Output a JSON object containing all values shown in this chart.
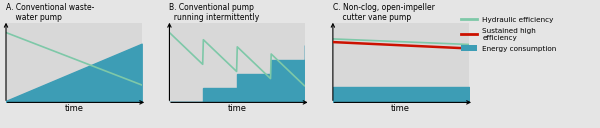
{
  "background_color": "#e5e5e5",
  "plot_bg_color": "#d8d8d8",
  "energy_color": "#3d9db5",
  "hydraulic_color": "#7ec8a8",
  "sustained_color": "#cc1100",
  "title_A": "A. Conventional waste-\n    water pump",
  "title_B": "B. Conventional pump\n  running intermittently",
  "title_C": "C. Non-clog, open-impeller\n    cutter vane pump",
  "xlabel": "time",
  "legend_hydraulic": "Hydraulic efficiency",
  "legend_sustained": "Sustained high\nefficiency",
  "legend_energy": "Energy consumption",
  "fig_width": 6.0,
  "fig_height": 1.28,
  "dpi": 100
}
